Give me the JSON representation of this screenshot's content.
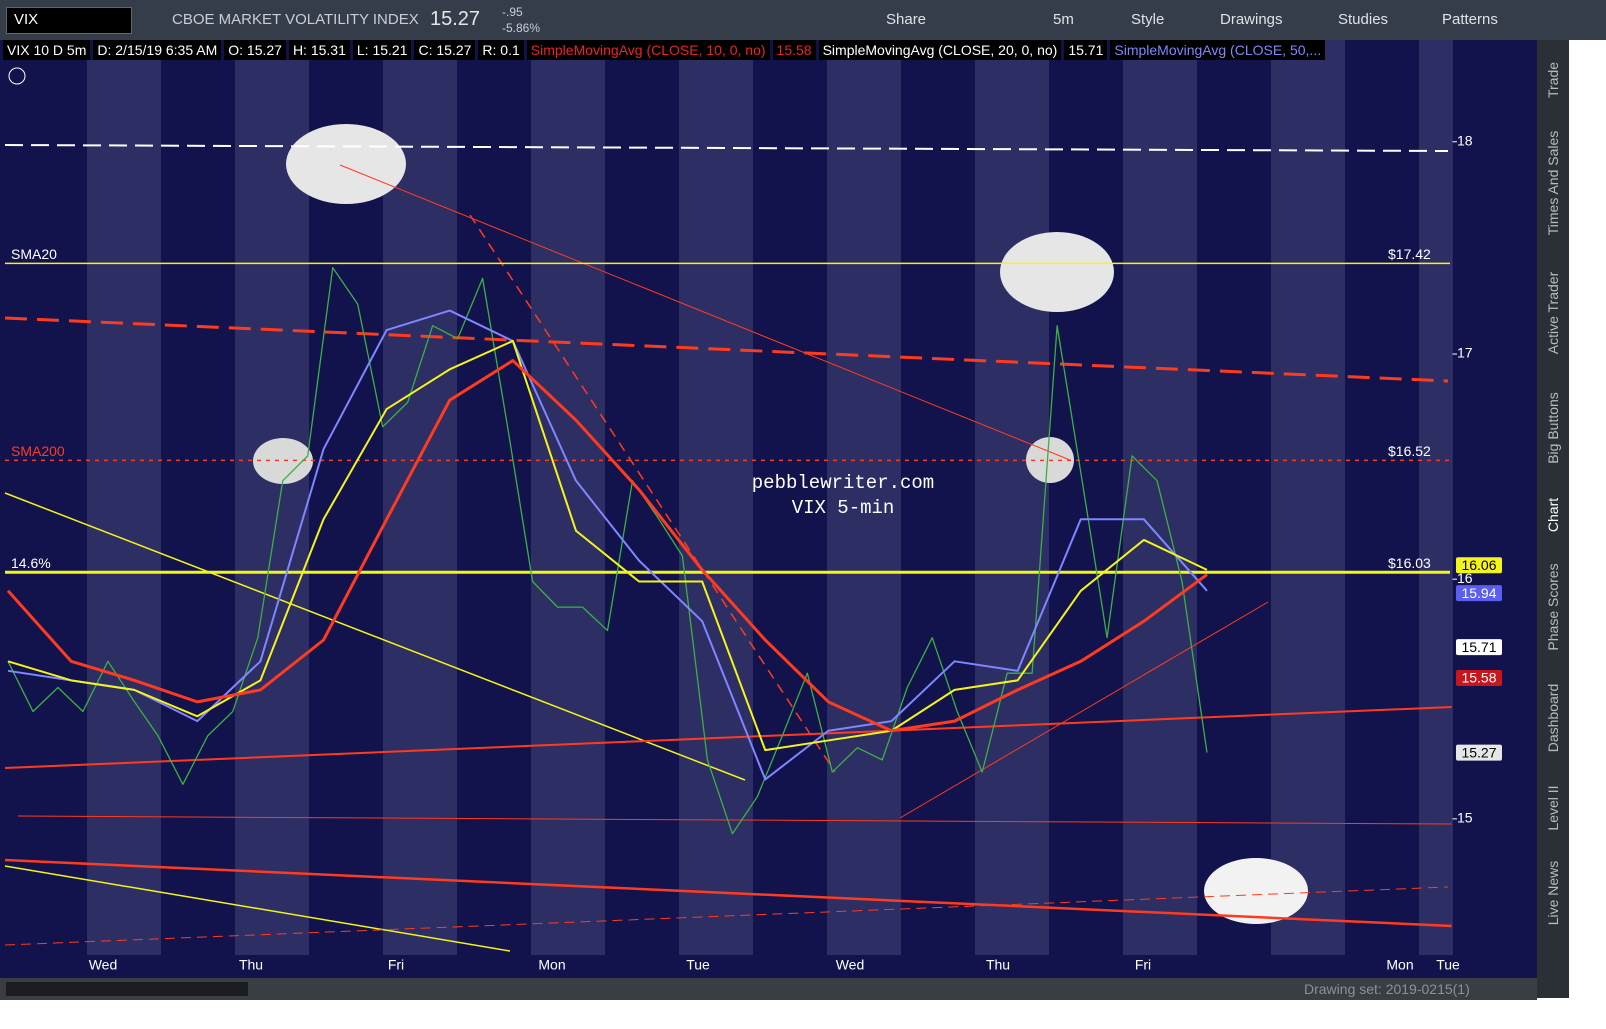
{
  "toolbar": {
    "symbol": "VIX",
    "description": "CBOE MARKET VOLATILITY INDEX",
    "last": "15.27",
    "change": "-.95",
    "change_pct": "-5.86%",
    "buttons": [
      "Share",
      "5m",
      "Style",
      "Drawings",
      "Studies",
      "Patterns"
    ]
  },
  "status": {
    "items": [
      {
        "text": "VIX 10 D 5m",
        "color": "#ffffff"
      },
      {
        "text": "D: 2/15/19 6:35 AM",
        "color": "#ffffff"
      },
      {
        "text": "O: 15.27",
        "color": "#ffffff"
      },
      {
        "text": "H: 15.31",
        "color": "#ffffff"
      },
      {
        "text": "L: 15.21",
        "color": "#ffffff"
      },
      {
        "text": "C: 15.27",
        "color": "#ffffff"
      },
      {
        "text": "R: 0.1",
        "color": "#ffffff"
      },
      {
        "text": "SimpleMovingAvg (CLOSE, 10, 0, no)",
        "color": "#e8242a"
      },
      {
        "text": "15.58",
        "color": "#e8242a"
      },
      {
        "text": "SimpleMovingAvg (CLOSE, 20, 0, no)",
        "color": "#ffffff"
      },
      {
        "text": "15.71",
        "color": "#ffffff"
      },
      {
        "text": "SimpleMovingAvg (CLOSE, 50,...",
        "color": "#7f86ff"
      }
    ]
  },
  "chart_data": {
    "type": "line",
    "log_scale": true,
    "ylim": [
      14.46,
      18.5
    ],
    "yticks": [
      15,
      16,
      17,
      18
    ],
    "x_labels": [
      "Wed",
      "Thu",
      "Fri",
      "Mon",
      "Tue",
      "Wed",
      "Thu",
      "Fri",
      "Mon",
      "Tue"
    ],
    "series": [
      {
        "color": "#3cb043",
        "values": [
          15.65,
          15.44,
          15.54,
          15.44,
          15.65,
          15.49,
          15.34,
          15.14,
          15.34,
          15.44,
          15.75,
          16.43,
          16.54,
          17.4,
          17.23,
          16.67,
          16.78,
          17.13,
          17.07,
          17.35,
          16.67,
          15.99,
          15.88,
          15.88,
          15.78,
          16.43,
          16.27,
          16.1,
          15.24,
          14.94,
          15.09,
          15.34,
          15.6,
          15.19,
          15.29,
          15.24,
          15.54,
          15.75,
          15.44,
          15.19,
          15.6,
          15.6,
          17.13,
          16.43,
          15.75,
          16.54,
          16.43,
          15.99,
          15.27
        ]
      },
      {
        "color": "#7f86ff",
        "values": [
          15.61,
          15.57,
          15.53,
          15.4,
          15.65,
          16.57,
          17.11,
          17.2,
          17.06,
          16.43,
          16.08,
          15.82,
          15.16,
          15.36,
          15.4,
          15.65,
          15.61,
          16.26,
          16.26,
          15.95
        ]
      },
      {
        "color": "#f4f41a",
        "values": [
          15.65,
          15.57,
          15.53,
          15.42,
          15.57,
          16.26,
          16.75,
          16.93,
          17.06,
          16.21,
          15.99,
          15.99,
          15.28,
          15.32,
          15.36,
          15.53,
          15.57,
          15.95,
          16.17,
          16.04
        ]
      },
      {
        "color": "#ff3b1f",
        "values": [
          15.95,
          15.65,
          15.57,
          15.48,
          15.53,
          15.74,
          16.26,
          16.79,
          16.97,
          16.7,
          16.39,
          16.04,
          15.74,
          15.48,
          15.36,
          15.4,
          15.53,
          15.65,
          15.82,
          16.02
        ]
      }
    ],
    "levels": [
      {
        "name": "SMA20",
        "value": 17.42,
        "value_label": "$17.42",
        "color": "#f4f41a",
        "style": "solid"
      },
      {
        "name": "SMA200",
        "value": 16.52,
        "value_label": "$16.52",
        "color": "#ff3b1f",
        "style": "dotted"
      },
      {
        "name": "14.6%",
        "value": 16.03,
        "value_label": "$16.03",
        "color": "#f4f41a",
        "style": "thick"
      }
    ],
    "badges": [
      {
        "value": 16.06,
        "color": "#f4f41a",
        "text_color": "#000000"
      },
      {
        "value": 15.94,
        "color": "#5a5ff0",
        "text_color": "#ffffff"
      },
      {
        "value": 15.71,
        "color": "#ffffff",
        "text_color": "#000000"
      },
      {
        "value": 15.58,
        "color": "#c8161d",
        "text_color": "#ffffff"
      },
      {
        "value": 15.27,
        "color": "#e6e6e6",
        "text_color": "#000000"
      }
    ],
    "watermark": [
      "pebblewriter.com",
      "VIX 5-min"
    ]
  },
  "sidebar_tabs": [
    "Trade",
    "Times And Sales",
    "Active Trader",
    "Big Buttons",
    "Chart",
    "Phase Scores",
    "Dashboard",
    "Level II",
    "Live News"
  ],
  "footer": {
    "drawing_set": "Drawing set: 2019-0215(1)"
  }
}
